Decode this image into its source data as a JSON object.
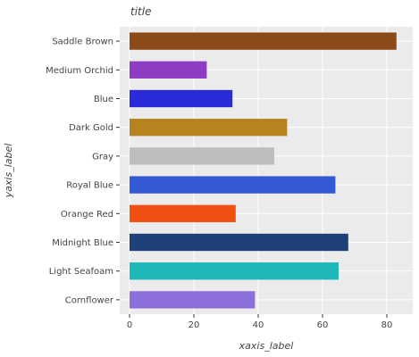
{
  "chart_data": {
    "type": "bar",
    "orientation": "horizontal",
    "title": "title",
    "xlabel": "xaxis_label",
    "ylabel": "yaxis_label",
    "xlim": [
      0,
      85
    ],
    "xticks": [
      0,
      20,
      40,
      60,
      80
    ],
    "grid": true,
    "categories": [
      "Cornflower",
      "Light Seafoam",
      "Midnight Blue",
      "Orange Red",
      "Royal Blue",
      "Gray",
      "Dark Gold",
      "Blue",
      "Medium Orchid",
      "Saddle Brown"
    ],
    "values": [
      39,
      65,
      68,
      33,
      64,
      45,
      49,
      32,
      24,
      83
    ],
    "colors": [
      "#8c6fd8",
      "#1fb8b8",
      "#1f3f78",
      "#f24f12",
      "#3558d6",
      "#bdbdbd",
      "#b5841e",
      "#2a2ad9",
      "#8e3cc4",
      "#8c4a18"
    ]
  }
}
